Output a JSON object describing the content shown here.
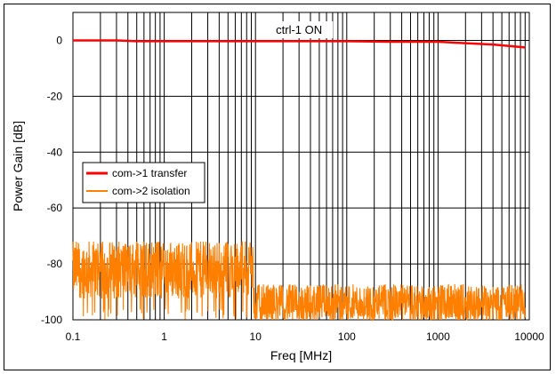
{
  "chart_data": {
    "type": "line",
    "title": "",
    "annotation": "ctrl-1 ON",
    "xlabel": "Freq [MHz]",
    "ylabel": "Power Gain [dB]",
    "x_scale": "log",
    "xlim": [
      0.1,
      10000
    ],
    "ylim": [
      -100,
      10
    ],
    "x_ticks": [
      0.1,
      1,
      10,
      100,
      1000,
      10000
    ],
    "x_tick_labels": [
      "0.1",
      "1",
      "10",
      "100",
      "1000",
      "10000"
    ],
    "y_ticks": [
      0,
      -20,
      -40,
      -60,
      -80,
      -100
    ],
    "y_tick_labels": [
      "0",
      "-20",
      "-40",
      "-60",
      "-80",
      "-100"
    ],
    "grid": {
      "x_minor": true,
      "y_major": true
    },
    "legend_position": "left",
    "series": [
      {
        "name": "com->1 transfer",
        "color": "#ff0000",
        "x": [
          0.1,
          0.3,
          0.5,
          1,
          3,
          10,
          30,
          100,
          300,
          1000,
          2000,
          4000,
          6000,
          9000
        ],
        "y": [
          0,
          0,
          -0.3,
          -0.3,
          -0.3,
          -0.3,
          -0.3,
          -0.3,
          -0.5,
          -0.5,
          -1,
          -1.5,
          -2,
          -2.5
        ]
      },
      {
        "name": "com->2 isolation",
        "color": "#ff7f00",
        "x_range": [
          0.1,
          9000
        ],
        "y_band_low": [
          -90,
          -72,
          -90,
          -78,
          -100,
          -82
        ],
        "y_band_by_region": [
          {
            "x_from": 0.1,
            "x_to": 9.5,
            "mean": -82,
            "min": -100,
            "max": -72
          },
          {
            "x_from": 9.5,
            "x_to": 9000,
            "mean": -94,
            "min": -100,
            "max": -82
          }
        ]
      }
    ]
  }
}
